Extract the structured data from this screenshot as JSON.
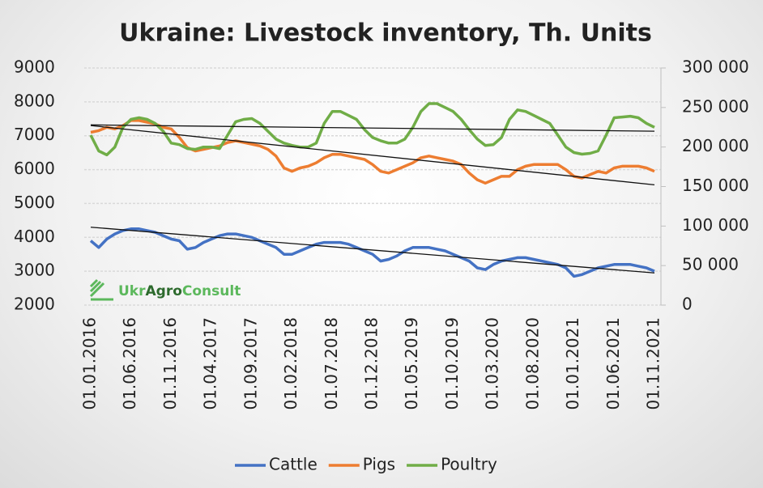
{
  "chart_data": {
    "type": "line",
    "title": "Ukraine: Livestock inventory, Th. Units",
    "logo": [
      "Ukr",
      "Agro",
      "Consult"
    ],
    "categories": [
      "01.01.2016",
      null,
      null,
      null,
      null,
      "01.06.2016",
      null,
      null,
      null,
      null,
      "01.11.2016",
      null,
      null,
      null,
      null,
      "01.04.2017",
      null,
      null,
      null,
      null,
      "01.09.2017",
      null,
      null,
      null,
      null,
      "01.02.2018",
      null,
      null,
      null,
      null,
      "01.07.2018",
      null,
      null,
      null,
      null,
      "01.12.2018",
      null,
      null,
      null,
      null,
      "01.05.2019",
      null,
      null,
      null,
      null,
      "01.10.2019",
      null,
      null,
      null,
      null,
      "01.03.2020",
      null,
      null,
      null,
      null,
      "01.08.2020",
      null,
      null,
      null,
      null,
      "01.01.2021",
      null,
      null,
      null,
      null,
      "01.06.2021",
      null,
      null,
      null,
      null,
      "01.11.2021"
    ],
    "series": [
      {
        "name": "Cattle",
        "color": "#4472c4",
        "axis": "y",
        "trend": [
          4300,
          2950
        ],
        "values": [
          3900,
          3700,
          3950,
          4100,
          4200,
          4250,
          4250,
          4200,
          4150,
          4050,
          3950,
          3900,
          3650,
          3700,
          3850,
          3950,
          4050,
          4100,
          4100,
          4050,
          4000,
          3900,
          3800,
          3700,
          3500,
          3500,
          3600,
          3700,
          3800,
          3850,
          3850,
          3850,
          3800,
          3700,
          3600,
          3500,
          3300,
          3350,
          3450,
          3600,
          3700,
          3700,
          3700,
          3650,
          3600,
          3500,
          3400,
          3300,
          3100,
          3050,
          3200,
          3300,
          3350,
          3400,
          3400,
          3350,
          3300,
          3250,
          3200,
          3100,
          2850,
          2900,
          3000,
          3100,
          3150,
          3200,
          3200,
          3200,
          3150,
          3100,
          3000
        ]
      },
      {
        "name": "Pigs",
        "color": "#ed7d31",
        "axis": "y",
        "trend": [
          7300,
          5550
        ],
        "values": [
          7100,
          7150,
          7250,
          7200,
          7300,
          7450,
          7450,
          7400,
          7350,
          7250,
          7200,
          6950,
          6650,
          6550,
          6600,
          6650,
          6700,
          6800,
          6850,
          6800,
          6750,
          6700,
          6600,
          6400,
          6050,
          5950,
          6050,
          6100,
          6200,
          6350,
          6450,
          6450,
          6400,
          6350,
          6300,
          6150,
          5950,
          5900,
          6000,
          6100,
          6200,
          6350,
          6400,
          6350,
          6300,
          6250,
          6150,
          5900,
          5700,
          5600,
          5700,
          5800,
          5800,
          6000,
          6100,
          6150,
          6150,
          6150,
          6150,
          6000,
          5800,
          5750,
          5850,
          5950,
          5900,
          6050,
          6100,
          6100,
          6100,
          6050,
          5950
        ]
      },
      {
        "name": "Poultry",
        "color": "#70ad47",
        "axis": "y2",
        "trend": [
          228000,
          220000
        ],
        "values": [
          215000,
          195000,
          190000,
          200000,
          225000,
          235000,
          237000,
          235000,
          230000,
          220000,
          205000,
          203000,
          198000,
          197000,
          200000,
          200000,
          198000,
          215000,
          232000,
          235000,
          236000,
          230000,
          220000,
          210000,
          205000,
          202000,
          200000,
          200000,
          205000,
          230000,
          245000,
          245000,
          240000,
          235000,
          222000,
          212000,
          208000,
          205000,
          205000,
          210000,
          225000,
          245000,
          255000,
          255000,
          250000,
          245000,
          235000,
          222000,
          210000,
          202000,
          203000,
          212000,
          235000,
          247000,
          245000,
          240000,
          235000,
          230000,
          215000,
          200000,
          193000,
          191000,
          192000,
          195000,
          215000,
          237000,
          238000,
          239000,
          237000,
          230000,
          225000
        ]
      }
    ],
    "ylim": [
      2000,
      9000
    ],
    "yticks": [
      2000,
      3000,
      4000,
      5000,
      6000,
      7000,
      8000,
      9000
    ],
    "y2lim": [
      0,
      300000
    ],
    "y2ticks": [
      0,
      {
        "value": 50000,
        "label": "50 000"
      },
      {
        "value": 100000,
        "label": "100 000"
      },
      {
        "value": 150000,
        "label": "150 000"
      },
      {
        "value": 200000,
        "label": "200 000"
      },
      {
        "value": 250000,
        "label": "250 000"
      },
      {
        "value": 300000,
        "label": "300 000"
      }
    ],
    "grid": true,
    "legend": "bottom"
  }
}
